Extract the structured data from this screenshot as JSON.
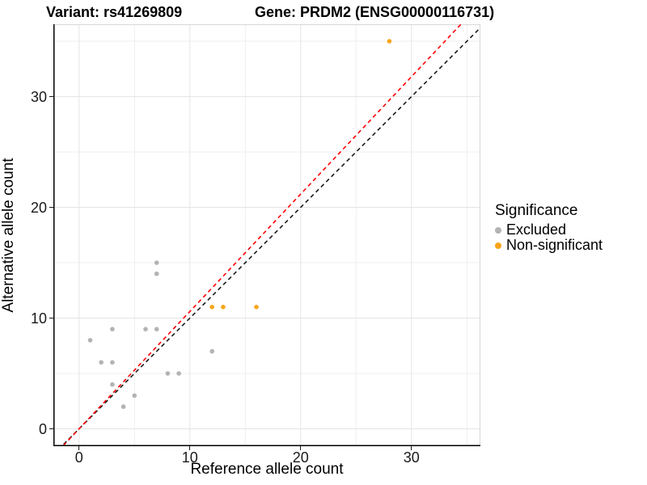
{
  "titles": {
    "variant": "Variant: rs41269809",
    "gene": "Gene: PRDM2 (ENSG00000116731)"
  },
  "axes": {
    "x": {
      "label": "Reference allele count",
      "major_ticks": [
        0,
        10,
        20,
        30
      ],
      "minor_ticks": [
        5,
        15,
        25,
        35
      ]
    },
    "y": {
      "label": "Alternative allele count",
      "major_ticks": [
        0,
        10,
        20,
        30
      ],
      "minor_ticks": [
        5,
        15,
        25,
        35
      ]
    }
  },
  "legend": {
    "title": "Significance",
    "items": [
      {
        "label": "Excluded",
        "color": "#B3B3B3"
      },
      {
        "label": "Non-significant",
        "color": "#F9A51B"
      }
    ]
  },
  "chart_data": {
    "type": "scatter",
    "title_left": "Variant: rs41269809",
    "title_right": "Gene: PRDM2 (ENSG00000116731)",
    "xlabel": "Reference allele count",
    "ylabel": "Alternative allele count",
    "xlim": [
      -2.3,
      36.2
    ],
    "ylim": [
      -2.3,
      36.9
    ],
    "grid": {
      "major_color": "#E4E4E4",
      "minor_color": "#EFEFEF",
      "border_color": "#D8D8D8",
      "axis_color": "#000000"
    },
    "legend_position": "right",
    "series": [
      {
        "name": "Excluded",
        "color": "#B3B3B3",
        "points": [
          [
            1,
            8
          ],
          [
            2,
            6
          ],
          [
            3,
            6
          ],
          [
            3,
            4
          ],
          [
            3,
            9
          ],
          [
            4,
            2
          ],
          [
            5,
            3
          ],
          [
            6,
            9
          ],
          [
            7,
            9
          ],
          [
            7,
            14
          ],
          [
            7,
            15
          ],
          [
            8,
            5
          ],
          [
            9,
            5
          ],
          [
            12,
            7
          ]
        ]
      },
      {
        "name": "Non-significant",
        "color": "#F9A51B",
        "points": [
          [
            12,
            11
          ],
          [
            13,
            11
          ],
          [
            16,
            11
          ],
          [
            28,
            35
          ]
        ]
      }
    ],
    "lines": [
      {
        "name": "identity-line",
        "slope": 1,
        "intercept": 0,
        "color": "#1A1A1A",
        "dash": "5 4"
      },
      {
        "name": "fitted-line",
        "slope": 1.06,
        "intercept": 0,
        "color": "#FF0000",
        "dash": "5 4"
      }
    ]
  }
}
